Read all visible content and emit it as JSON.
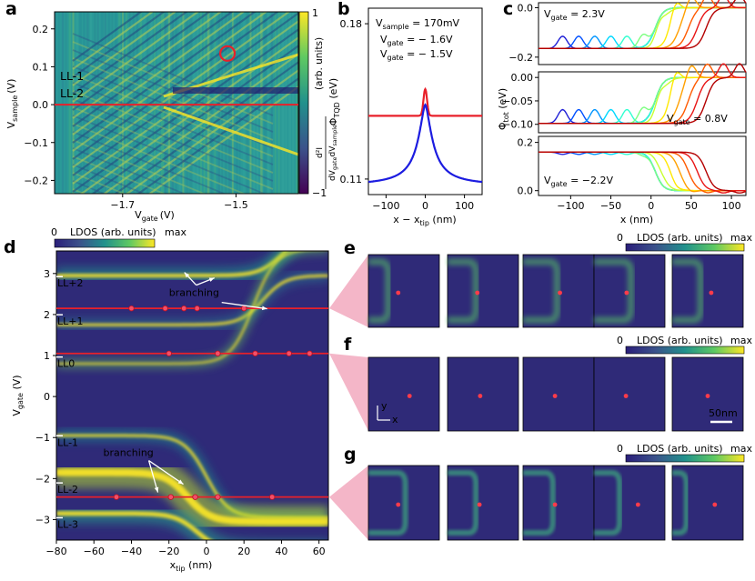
{
  "panel_labels": {
    "a": "a",
    "b": "b",
    "c": "c",
    "d": "d",
    "e": "e",
    "f": "f",
    "g": "g"
  },
  "colors": {
    "viridis_dark": "#440154",
    "viridis_mid": "#21918c",
    "viridis_yellow": "#fde725",
    "red": "#e8202a",
    "blue": "#1c1ce0",
    "pink": "#f4b6c8"
  },
  "chart_data": [
    {
      "panel": "a",
      "type": "heatmap",
      "xlabel_main": "V",
      "xlabel_sub": "gate",
      "xlabel_unit": "(V)",
      "ylabel_main": "V",
      "ylabel_sub": "sample",
      "ylabel_unit": "(V)",
      "x_ticks": [
        "−1.7",
        "−1.5"
      ],
      "x_tick_values": [
        -1.7,
        -1.5
      ],
      "y_ticks": [
        "0.2",
        "0.1",
        "0.0",
        "−0.1",
        "−0.2"
      ],
      "y_tick_values": [
        0.2,
        0.1,
        0.0,
        -0.1,
        -0.2
      ],
      "xlim": [
        -1.82,
        -1.39
      ],
      "ylim": [
        -0.235,
        0.245
      ],
      "annotations": [
        "LL-1",
        "LL-2"
      ],
      "cut_line_v": 0.0,
      "circle_marker": {
        "x": -1.515,
        "y": 0.135
      },
      "colorbar": {
        "ticks": [
          "1",
          "−1"
        ],
        "label": "(arb. units)",
        "formula_num": "d²I",
        "formula_den_a": "dV",
        "formula_den_sub_a": "gate",
        "formula_den_b": "dV",
        "formula_den_sub_b": "sample"
      }
    },
    {
      "panel": "b",
      "type": "line",
      "title_main": "V",
      "title_sub": "sample",
      "title_value": " = 170mV",
      "xlabel": "x − x",
      "xlabel_sub": "tip",
      "xlabel_unit": " (nm)",
      "ylabel_main": "Φ",
      "ylabel_sub": "TQD",
      "ylabel_unit": " (eV)",
      "x_ticks": [
        "−100",
        "0",
        "100"
      ],
      "x_tick_values": [
        -100,
        0,
        100
      ],
      "y_ticks": [
        "0.18",
        "0.11"
      ],
      "y_tick_values": [
        0.18,
        0.11
      ],
      "xlim": [
        -145,
        145
      ],
      "ylim": [
        0.103,
        0.187
      ],
      "series": [
        {
          "name": "V",
          "name_sub": "gate",
          "label_value": " = − 1.6V",
          "color": "#e8202a",
          "base": 0.1385,
          "peak": 0.1505,
          "width": 4.5,
          "kind": "gauss"
        },
        {
          "name": "V",
          "name_sub": "gate",
          "label_value": " = − 1.5V",
          "color": "#1c1ce0",
          "base": 0.107,
          "peak": 0.1435,
          "width": 22,
          "kind": "cusp"
        }
      ]
    },
    {
      "panel": "c",
      "type": "line",
      "xlabel": "x (nm)",
      "x_ticks": [
        "−100",
        "−50",
        "0",
        "50",
        "100"
      ],
      "x_tick_values": [
        -100,
        -50,
        0,
        50,
        100
      ],
      "xlim": [
        -140,
        118
      ],
      "ylabel_main": "Φ",
      "ylabel_sub": "tot",
      "ylabel_unit": " (eV)",
      "subplots": [
        {
          "label_main": "V",
          "label_sub": "gate",
          "label_value": " = 2.3V",
          "y_ticks": [
            "0.0",
            "−0.2"
          ],
          "y_tick_values": [
            0.0,
            -0.2
          ],
          "ylim": [
            -0.23,
            0.02
          ],
          "low": -0.165,
          "high": 0.0,
          "dir": "up"
        },
        {
          "label_main": "V",
          "label_sub": "gate",
          "label_value": " = 0.8V",
          "y_ticks": [
            "0.00",
            "−0.05",
            "−0.10"
          ],
          "y_tick_values": [
            0.0,
            -0.05,
            -0.1
          ],
          "ylim": [
            -0.118,
            0.012
          ],
          "low": -0.098,
          "high": 0.0,
          "dir": "up"
        },
        {
          "label_main": "V",
          "label_sub": "gate",
          "label_value": " = −2.2V",
          "y_ticks": [
            "0.2",
            "0.0"
          ],
          "y_tick_values": [
            0.2,
            0.0
          ],
          "ylim": [
            -0.02,
            0.225
          ],
          "low": 0.0,
          "high": 0.16,
          "dir": "down"
        }
      ],
      "tip_positions": [
        -110,
        -90,
        -70,
        -50,
        -30,
        -10,
        10,
        30,
        50,
        70,
        90,
        110
      ],
      "rainbow": [
        "#1f1fd6",
        "#0050ff",
        "#0095ff",
        "#00d8ff",
        "#30ffd0",
        "#7cff80",
        "#c8ff30",
        "#ffe800",
        "#ffa000",
        "#ff5a00",
        "#e81414",
        "#b40000"
      ]
    },
    {
      "panel": "d",
      "type": "heatmap",
      "xlabel": "x",
      "xlabel_sub": "tip",
      "xlabel_unit": " (nm)",
      "ylabel_main": "V",
      "ylabel_sub": "gate",
      "ylabel_unit": " (V)",
      "x_ticks": [
        "−80",
        "−60",
        "−40",
        "−20",
        "0",
        "20",
        "40",
        "60"
      ],
      "x_tick_values": [
        -80,
        -60,
        -40,
        -20,
        0,
        20,
        40,
        60
      ],
      "y_ticks": [
        "3",
        "2",
        "1",
        "0",
        "−1",
        "−2",
        "−3"
      ],
      "y_tick_values": [
        3,
        2,
        1,
        0,
        -1,
        -2,
        -3
      ],
      "xlim": [
        -80,
        65
      ],
      "ylim": [
        -3.5,
        3.55
      ],
      "colorbar": {
        "min": "0",
        "label": "LDOS (arb. units)",
        "max": "max"
      },
      "level_labels": [
        {
          "text": "LL+2",
          "v": 2.68
        },
        {
          "text": "LL+1",
          "v": 1.75
        },
        {
          "text": "LL0",
          "v": 0.72
        },
        {
          "text": "LL-1",
          "v": -1.2
        },
        {
          "text": "LL-2",
          "v": -2.35
        },
        {
          "text": "LL-3",
          "v": -3.2
        }
      ],
      "annotations": [
        {
          "text": "branching",
          "v": 2.45,
          "x": -20
        },
        {
          "text": "branching",
          "v": -1.45,
          "x": -55
        }
      ],
      "cut_lines": [
        {
          "v": 2.15,
          "points": [
            -40,
            -22,
            -12,
            -5,
            20
          ]
        },
        {
          "v": 1.05,
          "points": [
            -20,
            6,
            26,
            44,
            55
          ]
        },
        {
          "v": -2.45,
          "points": [
            -48,
            -19,
            -6,
            6,
            35
          ]
        }
      ]
    },
    {
      "panel": "e",
      "type": "heatmap",
      "colorbar": {
        "min": "0",
        "label": "LDOS (arb. units)",
        "max": "max"
      },
      "frames": [
        {
          "line_x": 0.28,
          "dot_x": 0.42,
          "style": "double"
        },
        {
          "line_x": 0.4,
          "dot_x": 0.42,
          "style": "double"
        },
        {
          "line_x": 0.48,
          "dot_x": 0.52,
          "style": "double"
        },
        {
          "line_x": 0.52,
          "dot_x": 0.46,
          "style": "double"
        },
        {
          "line_x": 0.4,
          "dot_x": 0.55,
          "style": "double"
        }
      ]
    },
    {
      "panel": "f",
      "type": "heatmap",
      "colorbar": {
        "min": "0",
        "label": "LDOS (arb. units)",
        "max": "max"
      },
      "axes_hint": {
        "y": "y",
        "x": "x"
      },
      "scale_bar": "50nm",
      "frames": [
        {
          "line_x": 0.78,
          "dot_x": 0.58
        },
        {
          "line_x": 0.6,
          "dot_x": 0.46
        },
        {
          "line_x": 0.48,
          "dot_x": 0.45
        },
        {
          "line_x": 0.33,
          "dot_x": 0.45
        },
        {
          "line_x": 0.18,
          "dot_x": 0.5
        }
      ]
    },
    {
      "panel": "g",
      "type": "heatmap",
      "colorbar": {
        "min": "0",
        "label": "LDOS (arb. units)",
        "max": "max"
      },
      "frames": [
        {
          "line_x": 0.52,
          "dot_x": 0.42
        },
        {
          "line_x": 0.4,
          "dot_x": 0.45
        },
        {
          "line_x": 0.42,
          "dot_x": 0.45
        },
        {
          "line_x": 0.36,
          "dot_x": 0.62
        },
        {
          "line_x": 0.2,
          "dot_x": 0.6
        }
      ]
    }
  ]
}
